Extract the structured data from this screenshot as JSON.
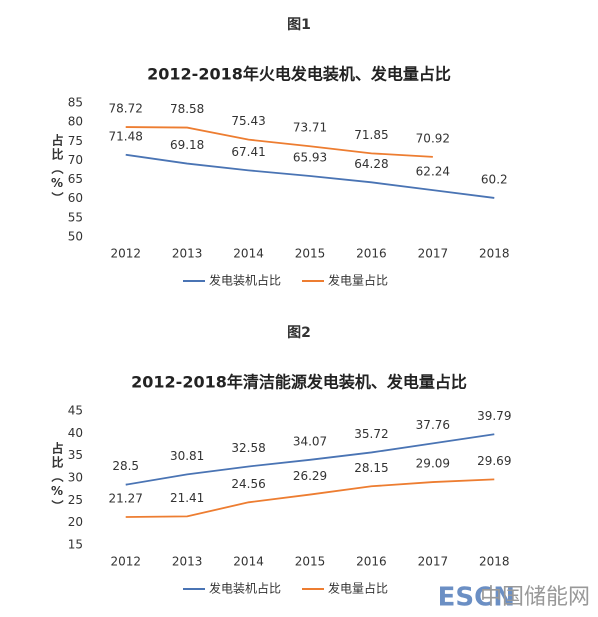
{
  "chart_data": [
    {
      "type": "line",
      "figure_label": "图1",
      "title": "2012-2018年火电发电装机、发电量占比",
      "y_label": "占比（%）",
      "categories": [
        "2012",
        "2013",
        "2014",
        "2015",
        "2016",
        "2017",
        "2018"
      ],
      "series": [
        {
          "name": "发电装机占比",
          "color": "#4a74b4",
          "values": [
            71.48,
            69.18,
            67.41,
            65.93,
            64.28,
            62.24,
            60.2
          ]
        },
        {
          "name": "发电量占比",
          "color": "#ed7d31",
          "values": [
            78.72,
            78.58,
            75.43,
            73.71,
            71.85,
            70.92,
            null
          ]
        }
      ],
      "ylim": [
        50,
        85
      ],
      "yticks": [
        50,
        55,
        60,
        65,
        70,
        75,
        80,
        85
      ],
      "grid": false,
      "legend": "bottom"
    },
    {
      "type": "line",
      "figure_label": "图2",
      "title": "2012-2018年清洁能源发电装机、发电量占比",
      "y_label": "占比（%）",
      "categories": [
        "2012",
        "2013",
        "2014",
        "2015",
        "2016",
        "2017",
        "2018"
      ],
      "series": [
        {
          "name": "发电装机占比",
          "color": "#4a74b4",
          "values": [
            28.5,
            30.81,
            32.58,
            34.07,
            35.72,
            37.76,
            39.79
          ]
        },
        {
          "name": "发电量占比",
          "color": "#ed7d31",
          "values": [
            21.27,
            21.41,
            24.56,
            26.29,
            28.15,
            29.09,
            29.69
          ]
        }
      ],
      "ylim": [
        15,
        45
      ],
      "yticks": [
        15,
        20,
        25,
        30,
        35,
        40,
        45
      ],
      "grid": false,
      "legend": "bottom"
    }
  ],
  "watermark": {
    "logo": "ESCN",
    "text": "中国储能网"
  }
}
